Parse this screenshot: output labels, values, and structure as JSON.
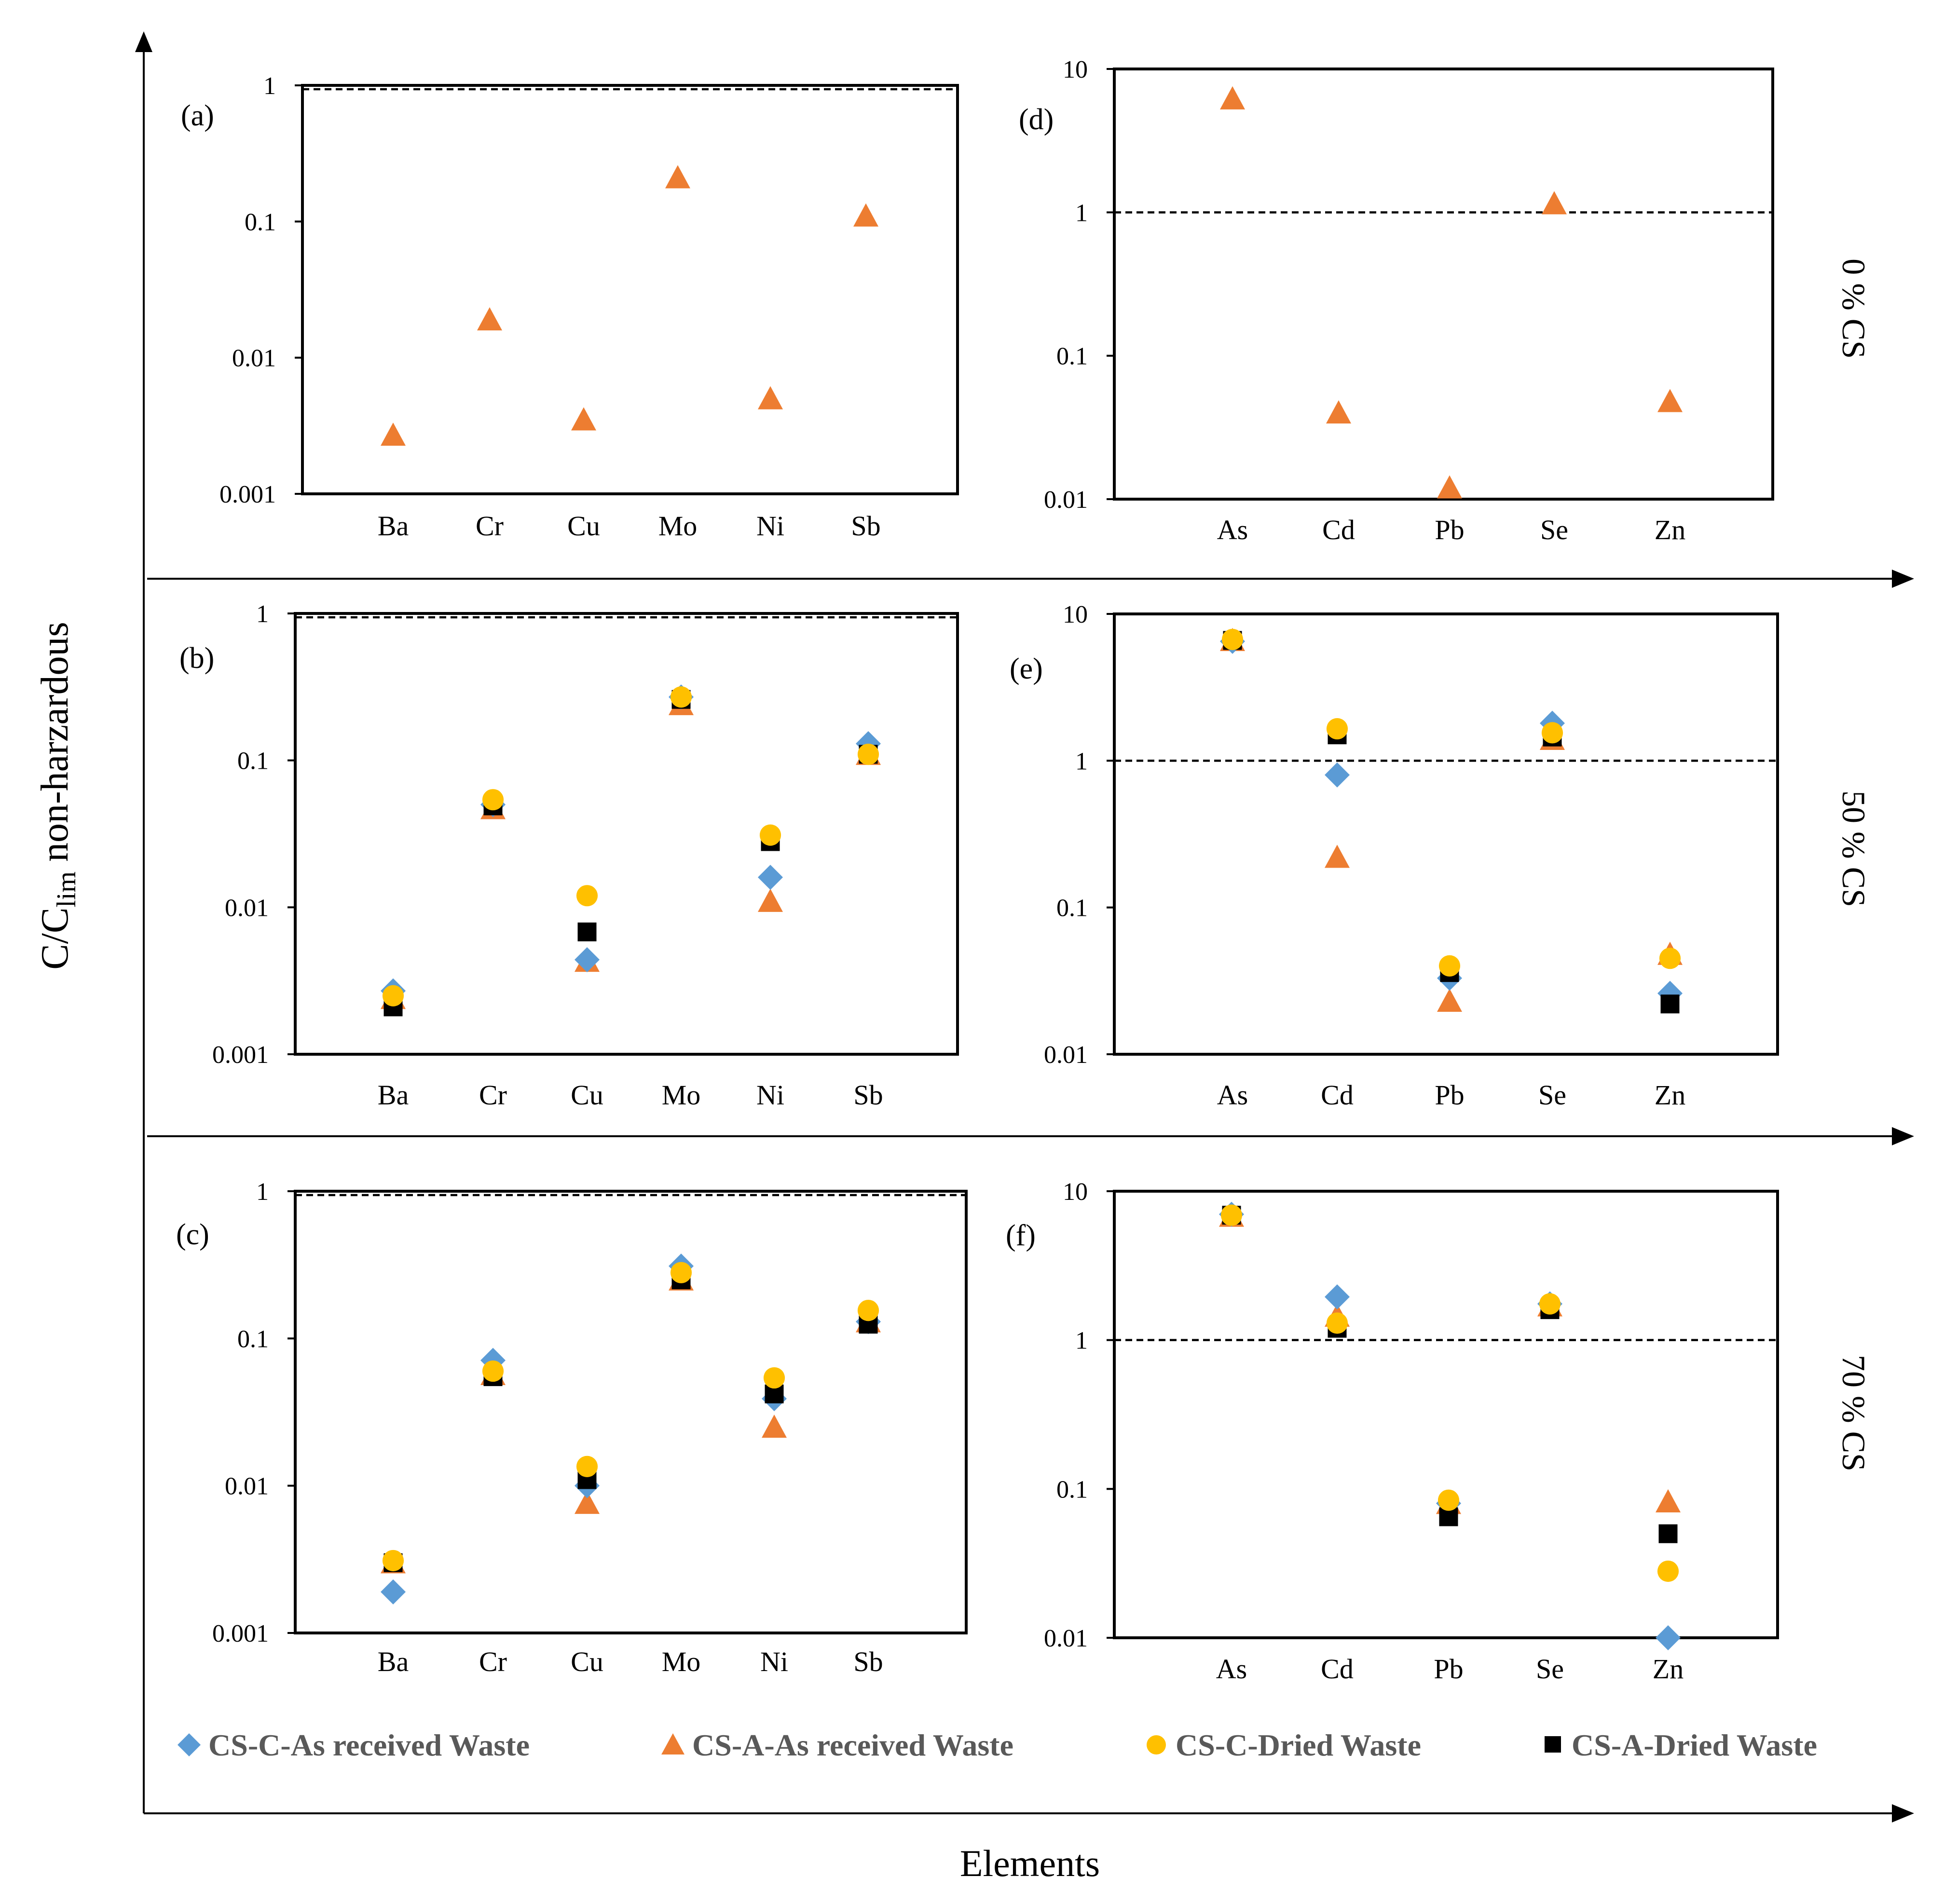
{
  "figure": {
    "y_axis_label_main": "C/C",
    "y_axis_label_sub": "lim",
    "y_axis_label_rest": " non-harzardous",
    "x_axis_label": "Elements"
  },
  "rows": [
    {
      "label": "0 % CS"
    },
    {
      "label": "50 % CS"
    },
    {
      "label": "70 % CS"
    }
  ],
  "legend": [
    {
      "label": "CS-C-As received Waste",
      "marker": "diamond",
      "color": "#5B9BD5"
    },
    {
      "label": "CS-A-As received Waste",
      "marker": "triangle",
      "color": "#ED7D31"
    },
    {
      "label": "CS-C-Dried Waste",
      "marker": "circle",
      "color": "#FFC000"
    },
    {
      "label": "CS-A-Dried Waste",
      "marker": "square",
      "color": "#000000"
    }
  ],
  "chart_data": [
    {
      "type": "scatter",
      "panel_label": "(a)",
      "y_scale": "log",
      "ylim": [
        0.001,
        1
      ],
      "threshold": 1,
      "tick_labels": [
        "0.001",
        "0.01",
        "0.1",
        "1"
      ],
      "categories": [
        "Ba",
        "Cr",
        "Cu",
        "Mo",
        "Ni",
        "Sb"
      ],
      "series": [
        {
          "name": "CS-A-As received Waste",
          "values": [
            0.0027,
            0.019,
            0.0035,
            0.21,
            0.005,
            0.11
          ]
        }
      ]
    },
    {
      "type": "scatter",
      "panel_label": "(b)",
      "y_scale": "log",
      "ylim": [
        0.001,
        1
      ],
      "threshold": 1,
      "tick_labels": [
        "0.001",
        "0.01",
        "0.1",
        "1"
      ],
      "categories": [
        "Ba",
        "Cr",
        "Cu",
        "Mo",
        "Ni",
        "Sb"
      ],
      "series": [
        {
          "name": "CS-C-As received Waste",
          "values": [
            0.0027,
            0.05,
            0.0044,
            0.27,
            0.016,
            0.13
          ]
        },
        {
          "name": "CS-A-As received Waste",
          "values": [
            0.0024,
            0.047,
            0.0043,
            0.24,
            0.011,
            0.11
          ]
        },
        {
          "name": "CS-C-Dried Waste",
          "values": [
            0.0025,
            0.054,
            0.012,
            0.27,
            0.031,
            0.11
          ]
        },
        {
          "name": "CS-A-Dried Waste",
          "values": [
            0.0021,
            0.049,
            0.0068,
            0.26,
            0.028,
            0.11
          ]
        }
      ]
    },
    {
      "type": "scatter",
      "panel_label": "(c)",
      "y_scale": "log",
      "ylim": [
        0.001,
        1
      ],
      "threshold": 1,
      "tick_labels": [
        "0.001",
        "0.01",
        "0.1",
        "1"
      ],
      "categories": [
        "Ba",
        "Cr",
        "Cu",
        "Mo",
        "Ni",
        "Sb"
      ],
      "series": [
        {
          "name": "CS-C-As received Waste",
          "values": [
            0.0019,
            0.071,
            0.01,
            0.31,
            0.039,
            0.13
          ]
        },
        {
          "name": "CS-A-As received Waste",
          "values": [
            0.003,
            0.057,
            0.0076,
            0.25,
            0.025,
            0.13
          ]
        },
        {
          "name": "CS-C-Dried Waste",
          "values": [
            0.0031,
            0.06,
            0.0135,
            0.28,
            0.054,
            0.155
          ]
        },
        {
          "name": "CS-A-Dried Waste",
          "values": [
            0.003,
            0.055,
            0.011,
            0.25,
            0.042,
            0.125
          ]
        }
      ]
    },
    {
      "type": "scatter",
      "panel_label": "(d)",
      "y_scale": "log",
      "ylim": [
        0.01,
        10
      ],
      "threshold": 1,
      "tick_labels": [
        "0.01",
        "0.1",
        "1",
        "10"
      ],
      "categories": [
        "As",
        "Cd",
        "Pb",
        "Se",
        "Zn"
      ],
      "series": [
        {
          "name": "CS-A-As received Waste",
          "values": [
            6.2,
            0.04,
            0.012,
            1.15,
            0.048
          ]
        }
      ]
    },
    {
      "type": "scatter",
      "panel_label": "(e)",
      "y_scale": "log",
      "ylim": [
        0.01,
        10
      ],
      "threshold": 1,
      "tick_labels": [
        "0.01",
        "0.1",
        "1",
        "10"
      ],
      "categories": [
        "As",
        "Cd",
        "Pb",
        "Se",
        "Zn"
      ],
      "series": [
        {
          "name": "CS-C-As received Waste",
          "values": [
            6.5,
            0.8,
            0.033,
            1.8,
            0.026
          ]
        },
        {
          "name": "CS-A-As received Waste",
          "values": [
            6.6,
            0.22,
            0.023,
            1.4,
            0.048
          ]
        },
        {
          "name": "CS-C-Dried Waste",
          "values": [
            6.7,
            1.65,
            0.04,
            1.55,
            0.045
          ]
        },
        {
          "name": "CS-A-Dried Waste",
          "values": [
            6.6,
            1.5,
            0.036,
            1.45,
            0.022
          ]
        }
      ]
    },
    {
      "type": "scatter",
      "panel_label": "(f)",
      "y_scale": "log",
      "ylim": [
        0.01,
        10
      ],
      "threshold": 1,
      "tick_labels": [
        "0.01",
        "0.1",
        "1",
        "10"
      ],
      "categories": [
        "As",
        "Cd",
        "Pb",
        "Se",
        "Zn"
      ],
      "series": [
        {
          "name": "CS-C-As received Waste",
          "values": [
            7.0,
            1.95,
            0.08,
            1.75,
            0.01
          ]
        },
        {
          "name": "CS-A-As received Waste",
          "values": [
            6.8,
            1.45,
            0.08,
            1.7,
            0.082
          ]
        },
        {
          "name": "CS-C-Dried Waste",
          "values": [
            6.9,
            1.3,
            0.084,
            1.75,
            0.028
          ]
        },
        {
          "name": "CS-A-Dried Waste",
          "values": [
            6.9,
            1.2,
            0.065,
            1.6,
            0.05
          ]
        }
      ]
    }
  ]
}
